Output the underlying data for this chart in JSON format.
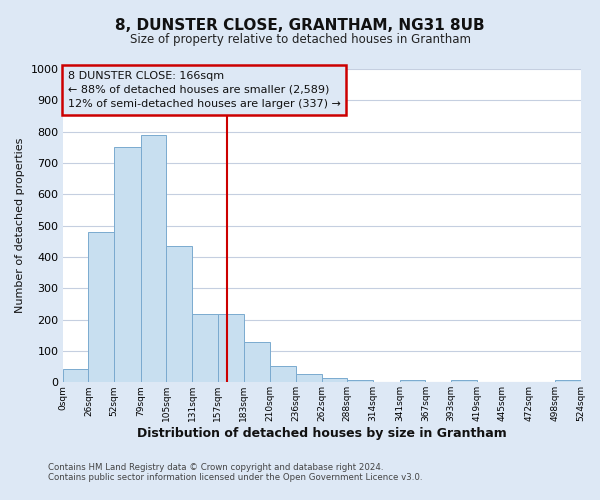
{
  "title": "8, DUNSTER CLOSE, GRANTHAM, NG31 8UB",
  "subtitle": "Size of property relative to detached houses in Grantham",
  "xlabel": "Distribution of detached houses by size in Grantham",
  "ylabel": "Number of detached properties",
  "bar_color": "#c8dff0",
  "bar_edge_color": "#7aaacf",
  "fig_background_color": "#dde8f5",
  "plot_background_color": "#ffffff",
  "grid_color": "#c5cfe0",
  "vline_color": "#cc0000",
  "vline_x": 166,
  "bin_edges": [
    0,
    26,
    52,
    79,
    105,
    131,
    157,
    183,
    210,
    236,
    262,
    288,
    314,
    341,
    367,
    393,
    419,
    445,
    472,
    498,
    524
  ],
  "bar_heights": [
    43,
    480,
    750,
    790,
    435,
    217,
    217,
    128,
    52,
    27,
    14,
    7,
    0,
    8,
    0,
    8,
    0,
    0,
    0,
    6
  ],
  "ylim": [
    0,
    1000
  ],
  "yticks": [
    0,
    100,
    200,
    300,
    400,
    500,
    600,
    700,
    800,
    900,
    1000
  ],
  "tick_labels": [
    "0sqm",
    "26sqm",
    "52sqm",
    "79sqm",
    "105sqm",
    "131sqm",
    "157sqm",
    "183sqm",
    "210sqm",
    "236sqm",
    "262sqm",
    "288sqm",
    "314sqm",
    "341sqm",
    "367sqm",
    "393sqm",
    "419sqm",
    "445sqm",
    "472sqm",
    "498sqm",
    "524sqm"
  ],
  "annotation_title": "8 DUNSTER CLOSE: 166sqm",
  "annotation_line1": "← 88% of detached houses are smaller (2,589)",
  "annotation_line2": "12% of semi-detached houses are larger (337) →",
  "footer1": "Contains HM Land Registry data © Crown copyright and database right 2024.",
  "footer2": "Contains public sector information licensed under the Open Government Licence v3.0.",
  "fig_width": 6.0,
  "fig_height": 5.0,
  "dpi": 100
}
